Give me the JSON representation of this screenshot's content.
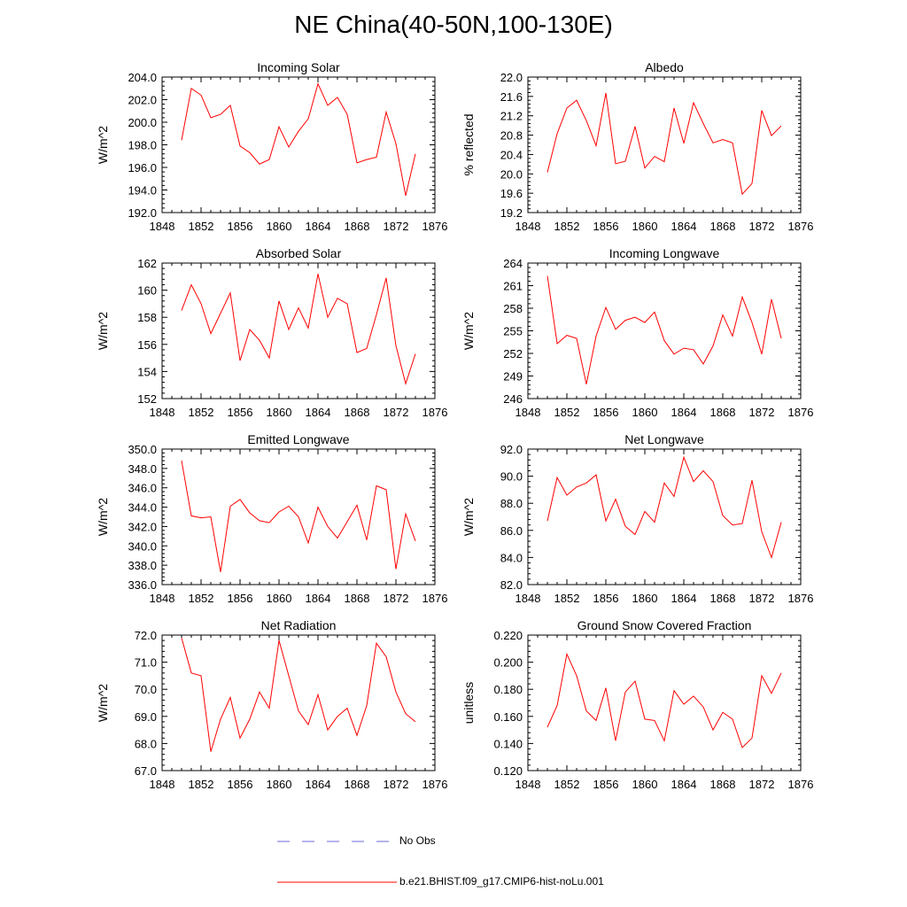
{
  "figure": {
    "title": "NE China(40-50N,100-130E)"
  },
  "colors": {
    "model_line": "#ff0000",
    "obs_line": "#6a6ad8",
    "axis": "#000000"
  },
  "legend": {
    "obs_label": "No Obs",
    "model_label": "b.e21.BHIST.f09_g17.CMIP6-hist-noLu.001"
  },
  "chart_data": [
    {
      "type": "line",
      "title": "Incoming Solar",
      "ylabel": "W/m^2",
      "xlim": [
        1848,
        1876
      ],
      "xticks": [
        1848,
        1852,
        1856,
        1860,
        1864,
        1868,
        1872,
        1876
      ],
      "ylim": [
        192.0,
        204.0
      ],
      "yticks": [
        "192.0",
        "194.0",
        "196.0",
        "198.0",
        "200.0",
        "202.0",
        "204.0"
      ],
      "series": [
        {
          "x": [
            1850,
            1851,
            1852,
            1853,
            1854,
            1855,
            1856,
            1857,
            1858,
            1859,
            1860,
            1861,
            1862,
            1863,
            1864,
            1865,
            1866,
            1867,
            1868,
            1869,
            1870,
            1871,
            1872,
            1873,
            1874
          ],
          "values": [
            198.4,
            203.0,
            202.4,
            200.4,
            200.7,
            201.5,
            197.9,
            197.3,
            196.3,
            196.7,
            199.6,
            197.8,
            199.2,
            200.3,
            203.4,
            201.5,
            202.2,
            200.7,
            196.4,
            196.7,
            196.9,
            200.9,
            198.1,
            193.5,
            197.2
          ]
        }
      ]
    },
    {
      "type": "line",
      "title": "Albedo",
      "ylabel": "% reflected",
      "xlim": [
        1848,
        1876
      ],
      "xticks": [
        1848,
        1852,
        1856,
        1860,
        1864,
        1868,
        1872,
        1876
      ],
      "ylim": [
        19.2,
        22.0
      ],
      "yticks": [
        "19.2",
        "19.6",
        "20.0",
        "20.4",
        "20.8",
        "21.2",
        "21.6",
        "22.0"
      ],
      "series": [
        {
          "x": [
            1850,
            1851,
            1852,
            1853,
            1854,
            1855,
            1856,
            1857,
            1858,
            1859,
            1860,
            1861,
            1862,
            1863,
            1864,
            1865,
            1866,
            1867,
            1868,
            1869,
            1870,
            1871,
            1872,
            1873,
            1874
          ],
          "values": [
            20.03,
            20.83,
            21.36,
            21.52,
            21.1,
            20.58,
            21.67,
            20.21,
            20.26,
            20.98,
            20.12,
            20.36,
            20.25,
            21.36,
            20.63,
            21.47,
            21.04,
            20.64,
            20.71,
            20.64,
            19.58,
            19.8,
            21.31,
            20.79,
            20.99
          ]
        }
      ]
    },
    {
      "type": "line",
      "title": "Absorbed Solar",
      "ylabel": "W/m^2",
      "xlim": [
        1848,
        1876
      ],
      "xticks": [
        1848,
        1852,
        1856,
        1860,
        1864,
        1868,
        1872,
        1876
      ],
      "ylim": [
        152,
        162
      ],
      "yticks": [
        "152",
        "154",
        "156",
        "158",
        "160",
        "162"
      ],
      "series": [
        {
          "x": [
            1850,
            1851,
            1852,
            1853,
            1854,
            1855,
            1856,
            1857,
            1858,
            1859,
            1860,
            1861,
            1862,
            1863,
            1864,
            1865,
            1866,
            1867,
            1868,
            1869,
            1870,
            1871,
            1872,
            1873,
            1874
          ],
          "values": [
            158.5,
            160.4,
            159.0,
            156.8,
            158.3,
            159.8,
            154.8,
            157.1,
            156.3,
            155.0,
            159.2,
            157.1,
            158.7,
            157.2,
            161.2,
            158.0,
            159.4,
            159.0,
            155.4,
            155.7,
            158.2,
            160.9,
            155.9,
            153.1,
            155.3
          ]
        }
      ]
    },
    {
      "type": "line",
      "title": "Incoming Longwave",
      "ylabel": "W/m^2",
      "xlim": [
        1848,
        1876
      ],
      "xticks": [
        1848,
        1852,
        1856,
        1860,
        1864,
        1868,
        1872,
        1876
      ],
      "ylim": [
        246,
        264
      ],
      "yticks": [
        "246",
        "249",
        "252",
        "255",
        "258",
        "261",
        "264"
      ],
      "series": [
        {
          "x": [
            1850,
            1851,
            1852,
            1853,
            1854,
            1855,
            1856,
            1857,
            1858,
            1859,
            1860,
            1861,
            1862,
            1863,
            1864,
            1865,
            1866,
            1867,
            1868,
            1869,
            1870,
            1871,
            1872,
            1873,
            1874
          ],
          "values": [
            262.3,
            253.3,
            254.4,
            254.0,
            247.9,
            254.3,
            258.1,
            255.2,
            256.4,
            256.8,
            256.1,
            257.5,
            253.7,
            251.9,
            252.7,
            252.5,
            250.6,
            253.0,
            257.1,
            254.3,
            259.5,
            256.1,
            251.9,
            259.2,
            254.0
          ]
        }
      ]
    },
    {
      "type": "line",
      "title": "Emitted Longwave",
      "ylabel": "W/m^2",
      "xlim": [
        1848,
        1876
      ],
      "xticks": [
        1848,
        1852,
        1856,
        1860,
        1864,
        1868,
        1872,
        1876
      ],
      "ylim": [
        336.0,
        350.0
      ],
      "yticks": [
        "336.0",
        "338.0",
        "340.0",
        "342.0",
        "344.0",
        "346.0",
        "348.0",
        "350.0"
      ],
      "series": [
        {
          "x": [
            1850,
            1851,
            1852,
            1853,
            1854,
            1855,
            1856,
            1857,
            1858,
            1859,
            1860,
            1861,
            1862,
            1863,
            1864,
            1865,
            1866,
            1867,
            1868,
            1869,
            1870,
            1871,
            1872,
            1873,
            1874
          ],
          "values": [
            348.8,
            343.1,
            342.9,
            343.0,
            337.3,
            344.1,
            344.8,
            343.4,
            342.6,
            342.4,
            343.5,
            344.1,
            343.0,
            340.3,
            344.0,
            342.0,
            340.8,
            342.5,
            344.2,
            340.6,
            346.2,
            345.8,
            337.6,
            343.3,
            340.5
          ]
        }
      ]
    },
    {
      "type": "line",
      "title": "Net Longwave",
      "ylabel": "W/m^2",
      "xlim": [
        1848,
        1876
      ],
      "xticks": [
        1848,
        1852,
        1856,
        1860,
        1864,
        1868,
        1872,
        1876
      ],
      "ylim": [
        82.0,
        92.0
      ],
      "yticks": [
        "82.0",
        "84.0",
        "86.0",
        "88.0",
        "90.0",
        "92.0"
      ],
      "series": [
        {
          "x": [
            1850,
            1851,
            1852,
            1853,
            1854,
            1855,
            1856,
            1857,
            1858,
            1859,
            1860,
            1861,
            1862,
            1863,
            1864,
            1865,
            1866,
            1867,
            1868,
            1869,
            1870,
            1871,
            1872,
            1873,
            1874
          ],
          "values": [
            86.7,
            89.9,
            88.6,
            89.2,
            89.5,
            90.1,
            86.7,
            88.3,
            86.3,
            85.7,
            87.4,
            86.6,
            89.5,
            88.5,
            91.4,
            89.6,
            90.4,
            89.6,
            87.1,
            86.4,
            86.5,
            89.7,
            85.9,
            84.0,
            86.6
          ]
        }
      ]
    },
    {
      "type": "line",
      "title": "Net Radiation",
      "ylabel": "W/m^2",
      "xlim": [
        1848,
        1876
      ],
      "xticks": [
        1848,
        1852,
        1856,
        1860,
        1864,
        1868,
        1872,
        1876
      ],
      "ylim": [
        67.0,
        72.0
      ],
      "yticks": [
        "67.0",
        "68.0",
        "69.0",
        "70.0",
        "71.0",
        "72.0"
      ],
      "series": [
        {
          "x": [
            1850,
            1851,
            1852,
            1853,
            1854,
            1855,
            1856,
            1857,
            1858,
            1859,
            1860,
            1861,
            1862,
            1863,
            1864,
            1865,
            1866,
            1867,
            1868,
            1869,
            1870,
            1871,
            1872,
            1873,
            1874
          ],
          "values": [
            71.9,
            70.6,
            70.5,
            67.7,
            68.9,
            69.7,
            68.2,
            68.9,
            69.9,
            69.3,
            71.8,
            70.5,
            69.2,
            68.7,
            69.8,
            68.5,
            69.0,
            69.3,
            68.3,
            69.4,
            71.7,
            71.2,
            69.9,
            69.1,
            68.8
          ]
        }
      ]
    },
    {
      "type": "line",
      "title": "Ground Snow Covered Fraction",
      "ylabel": "unitless",
      "xlim": [
        1848,
        1876
      ],
      "xticks": [
        1848,
        1852,
        1856,
        1860,
        1864,
        1868,
        1872,
        1876
      ],
      "ylim": [
        0.12,
        0.22
      ],
      "yticks": [
        "0.120",
        "0.140",
        "0.160",
        "0.180",
        "0.200",
        "0.220"
      ],
      "series": [
        {
          "x": [
            1850,
            1851,
            1852,
            1853,
            1854,
            1855,
            1856,
            1857,
            1858,
            1859,
            1860,
            1861,
            1862,
            1863,
            1864,
            1865,
            1866,
            1867,
            1868,
            1869,
            1870,
            1871,
            1872,
            1873,
            1874
          ],
          "values": [
            0.152,
            0.168,
            0.206,
            0.19,
            0.164,
            0.157,
            0.181,
            0.142,
            0.178,
            0.186,
            0.158,
            0.157,
            0.142,
            0.179,
            0.169,
            0.175,
            0.167,
            0.15,
            0.163,
            0.158,
            0.137,
            0.144,
            0.19,
            0.177,
            0.192
          ]
        }
      ]
    }
  ]
}
